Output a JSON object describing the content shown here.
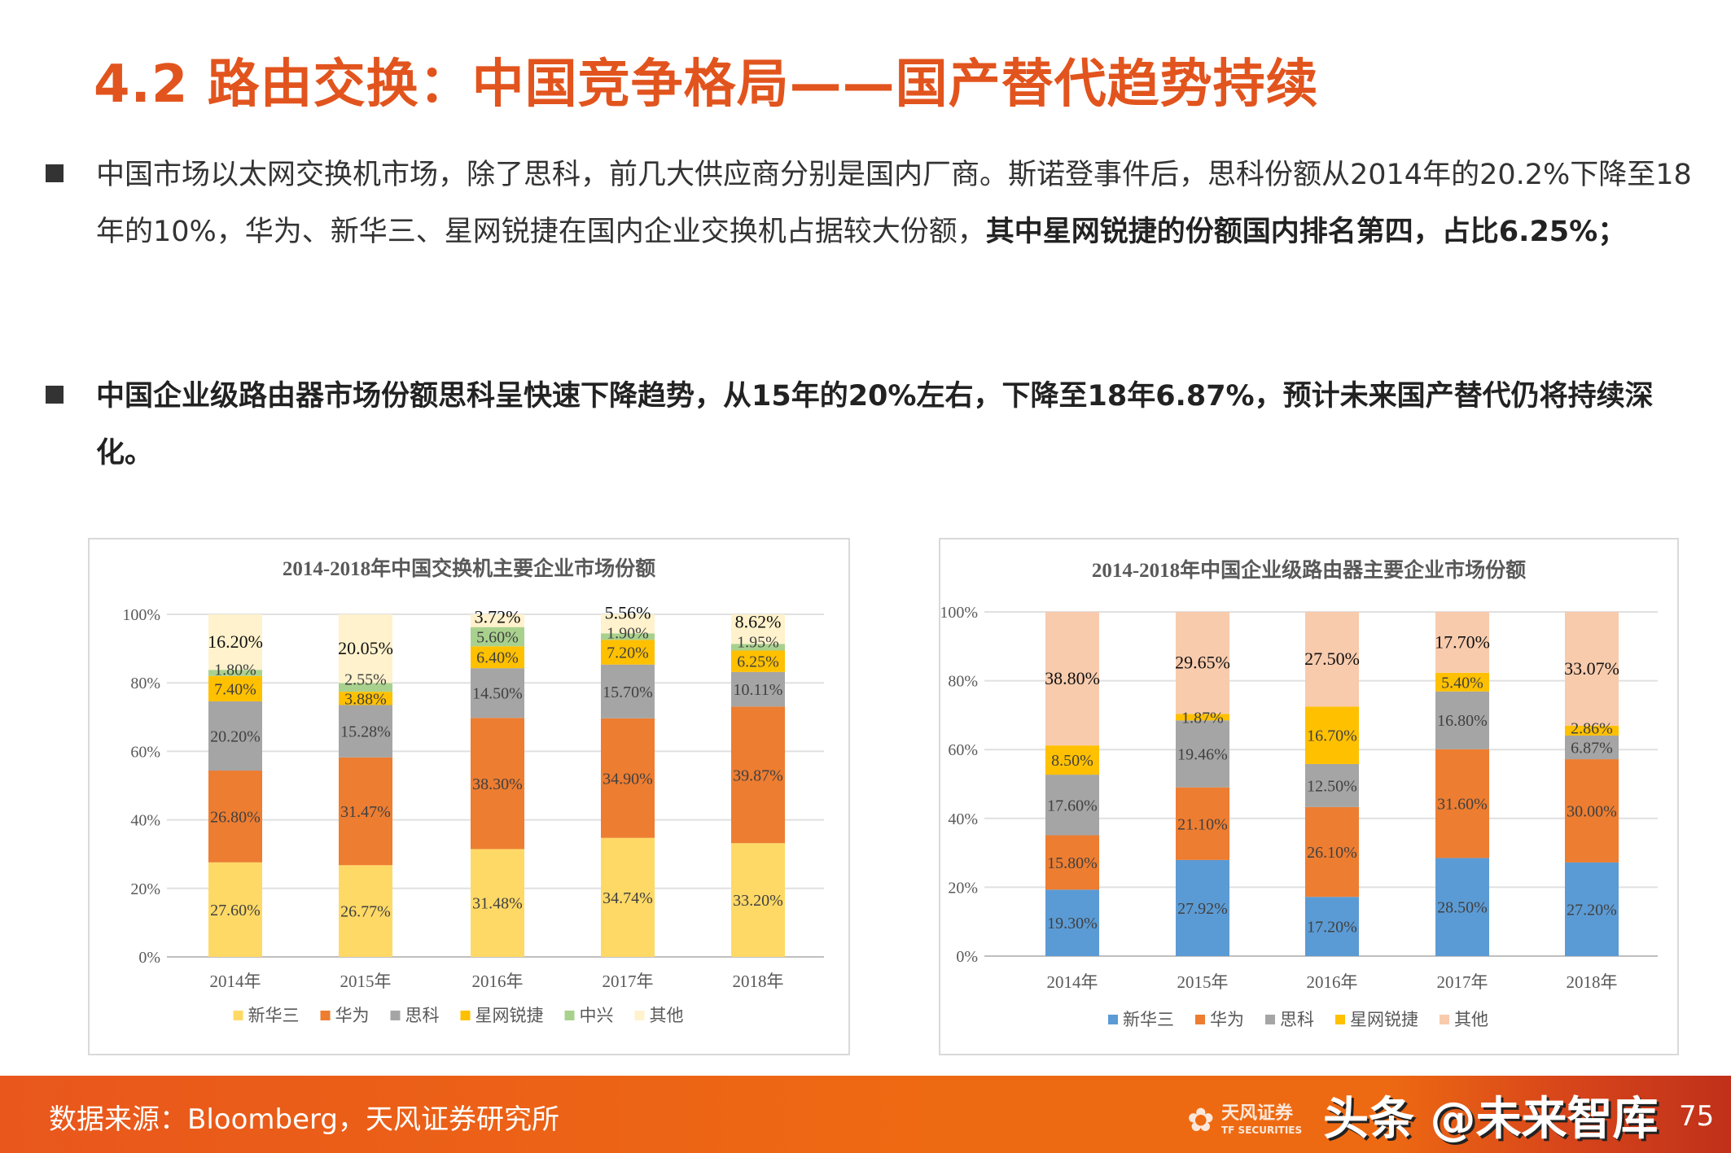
{
  "title": "4.2 路由交换：中国竞争格局——国产替代趋势持续",
  "bullets": [
    {
      "normal": "中国市场以太网交换机市场，除了思科，前几大供应商分别是国内厂商。斯诺登事件后，思科份额从2014年的20.2%下降至18年的10%，华为、新华三、星网锐捷在国内企业交换机占据较大份额，",
      "bold": "其中星网锐捷的份额国内排名第四，占比6.25%；"
    },
    {
      "normal": "",
      "bold": "中国企业级路由器市场份额思科呈快速下降趋势，从15年的20%左右，下降至18年6.87%，预计未来国产替代仍将持续深化。"
    }
  ],
  "chart_data": [
    {
      "type": "bar",
      "stacked": true,
      "title": "2014-2018年中国交换机主要企业市场份额",
      "categories": [
        "2014年",
        "2015年",
        "2016年",
        "2017年",
        "2018年"
      ],
      "yticks": [
        "0%",
        "20%",
        "40%",
        "60%",
        "80%",
        "100%"
      ],
      "ylim": [
        0,
        100
      ],
      "grid": true,
      "legend_position": "bottom",
      "series": [
        {
          "name": "新华三",
          "color": "#FFD966",
          "values": [
            27.6,
            26.77,
            31.48,
            34.74,
            33.2
          ],
          "labels": [
            "27.60%",
            "26.77%",
            "31.48%",
            "34.74%",
            "33.20%"
          ]
        },
        {
          "name": "华为",
          "color": "#ED7D31",
          "values": [
            26.8,
            31.47,
            38.3,
            34.9,
            39.87
          ],
          "labels": [
            "26.80%",
            "31.47%",
            "38.30%",
            "34.90%",
            "39.87%"
          ]
        },
        {
          "name": "思科",
          "color": "#A5A5A5",
          "values": [
            20.2,
            15.28,
            14.5,
            15.7,
            10.11
          ],
          "labels": [
            "20.20%",
            "15.28%",
            "14.50%",
            "15.70%",
            "10.11%"
          ]
        },
        {
          "name": "星网锐捷",
          "color": "#FFC000",
          "values": [
            7.4,
            3.88,
            6.4,
            7.2,
            6.25
          ],
          "labels": [
            "7.40%",
            "3.88%",
            "6.40%",
            "7.20%",
            "6.25%"
          ]
        },
        {
          "name": "中兴",
          "color": "#A9D18E",
          "values": [
            1.8,
            2.55,
            5.6,
            1.9,
            1.95
          ],
          "labels": [
            "1.80%",
            "2.55%",
            "5.60%",
            "1.90%",
            "1.95%"
          ]
        },
        {
          "name": "其他",
          "color": "#FFF2CC",
          "values": [
            16.2,
            20.05,
            3.72,
            5.56,
            8.62
          ],
          "labels": [
            "16.20%",
            "20.05%",
            "3.72%",
            "5.56%",
            "8.62%"
          ]
        }
      ]
    },
    {
      "type": "bar",
      "stacked": true,
      "title": "2014-2018年中国企业级路由器主要企业市场份额",
      "categories": [
        "2014年",
        "2015年",
        "2016年",
        "2017年",
        "2018年"
      ],
      "yticks": [
        "0%",
        "20%",
        "40%",
        "60%",
        "80%",
        "100%"
      ],
      "ylim": [
        0,
        100
      ],
      "grid": true,
      "legend_position": "bottom",
      "series": [
        {
          "name": "新华三",
          "color": "#5B9BD5",
          "values": [
            19.3,
            27.92,
            17.2,
            28.5,
            27.2
          ],
          "labels": [
            "19.30%",
            "27.92%",
            "17.20%",
            "28.50%",
            "27.20%"
          ]
        },
        {
          "name": "华为",
          "color": "#ED7D31",
          "values": [
            15.8,
            21.1,
            26.1,
            31.6,
            30.0
          ],
          "labels": [
            "15.80%",
            "21.10%",
            "26.10%",
            "31.60%",
            "30.00%"
          ]
        },
        {
          "name": "思科",
          "color": "#A5A5A5",
          "values": [
            17.6,
            19.46,
            12.5,
            16.8,
            6.87
          ],
          "labels": [
            "17.60%",
            "19.46%",
            "12.50%",
            "16.80%",
            "6.87%"
          ]
        },
        {
          "name": "星网锐捷",
          "color": "#FFC000",
          "values": [
            8.5,
            1.87,
            16.7,
            5.4,
            2.86
          ],
          "labels": [
            "8.50%",
            "1.87%",
            "16.70%",
            "5.40%",
            "2.86%"
          ]
        },
        {
          "name": "其他",
          "color": "#F8CBAD",
          "values": [
            38.8,
            29.65,
            27.5,
            17.7,
            33.07
          ],
          "labels": [
            "38.80%",
            "29.65%",
            "27.50%",
            "17.70%",
            "33.07%"
          ]
        }
      ]
    }
  ],
  "footer": {
    "source": "数据来源：Bloomberg，天风证券研究所",
    "watermark": "头条 @未来智库",
    "logo_cn": "天风证券",
    "logo_en": "TF SECURITIES",
    "page_number": "75"
  }
}
